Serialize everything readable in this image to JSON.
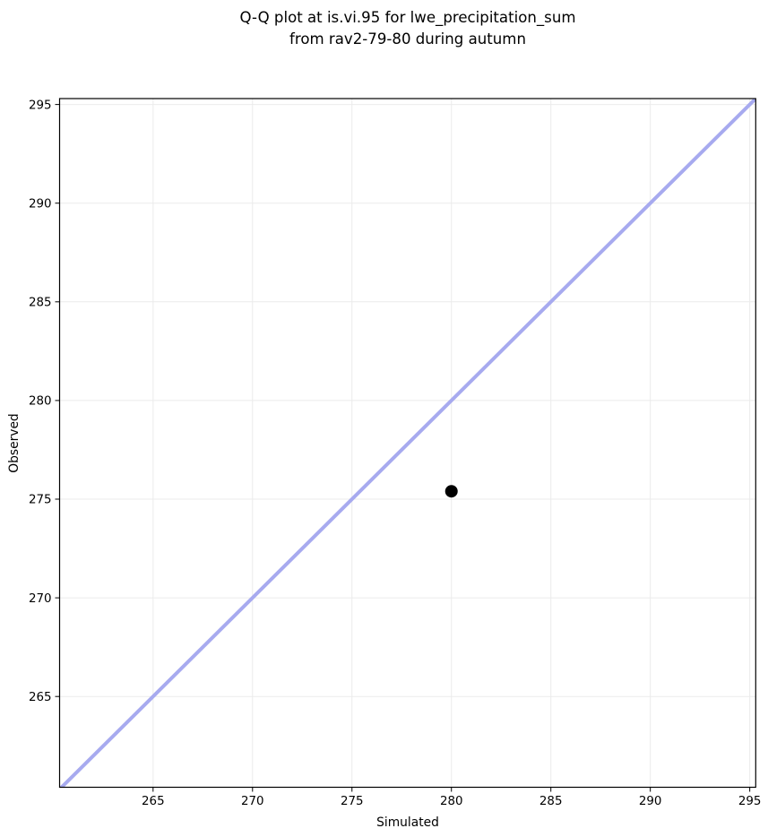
{
  "figure": {
    "background": "#ffffff"
  },
  "chart_data": {
    "type": "scatter",
    "title": "Q-Q plot at is.vi.95 for lwe_precipitation_sum\nfrom rav2-79-80 during autumn",
    "title_lines": [
      "Q-Q plot at is.vi.95 for lwe_precipitation_sum",
      "from rav2-79-80 during autumn"
    ],
    "xlabel": "Simulated",
    "ylabel": "Observed",
    "xlim": [
      260.3,
      295.3
    ],
    "ylim": [
      260.4,
      295.3
    ],
    "xticks": [
      265,
      270,
      275,
      280,
      285,
      290,
      295
    ],
    "yticks": [
      265,
      270,
      275,
      280,
      285,
      290,
      295
    ],
    "grid": true,
    "grid_color": "#ebebeb",
    "legend": false,
    "series": [
      {
        "name": "identity-line",
        "type": "line",
        "color": "#a7aaef",
        "x": [
          260.3,
          295.3
        ],
        "y": [
          260.3,
          295.3
        ]
      },
      {
        "name": "quantile-points",
        "type": "scatter",
        "color": "#000000",
        "points": [
          {
            "x": 280,
            "y": 275.4
          }
        ]
      }
    ],
    "marker_radius": 7,
    "line_width": 4,
    "spine_color": "#000000"
  }
}
